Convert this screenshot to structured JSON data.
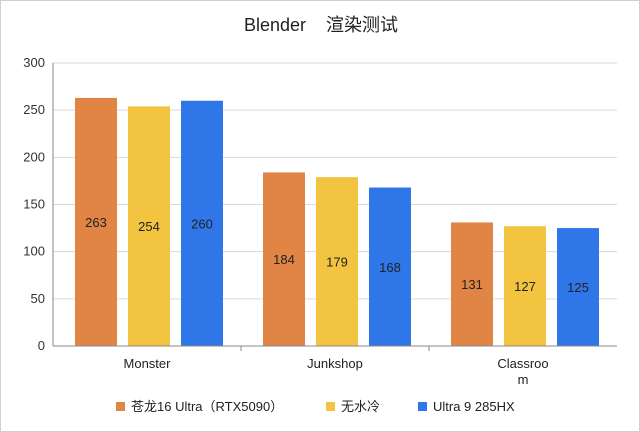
{
  "chart_data": {
    "type": "bar",
    "title": "Blender    渲染测试",
    "categories": [
      "Monster",
      "Junkshop",
      "Classroom"
    ],
    "category_label_lines": [
      [
        "Monster"
      ],
      [
        "Junkshop"
      ],
      [
        "Classroo",
        "m"
      ]
    ],
    "series": [
      {
        "name": "苍龙16 Ultra（RTX5090）",
        "color": "#e08543",
        "values": [
          263,
          184,
          131
        ]
      },
      {
        "name": "无水冷",
        "color": "#f2c440",
        "values": [
          254,
          179,
          127
        ]
      },
      {
        "name": "Ultra 9 285HX",
        "color": "#2f76e8",
        "values": [
          260,
          168,
          125
        ]
      }
    ],
    "ylim": [
      0,
      300
    ],
    "yticks": [
      0,
      50,
      100,
      150,
      200,
      250,
      300
    ],
    "xlabel": "",
    "ylabel": "",
    "grid": true,
    "legend_position": "bottom"
  }
}
